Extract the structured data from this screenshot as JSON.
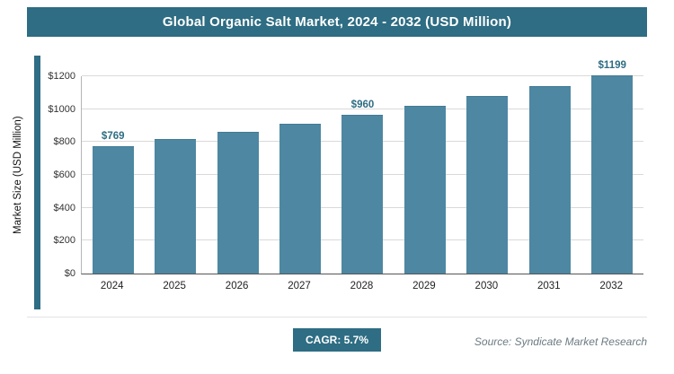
{
  "header": {
    "title": "Global Organic Salt Market, 2024 - 2032 (USD Million)"
  },
  "footer": {
    "cagr_label": "CAGR: 5.7%",
    "source": "Source: Syndicate Market Research"
  },
  "colors": {
    "accent": "#2e6d83",
    "bar": "#4d87a2",
    "gridline": "#d9d9d9"
  },
  "chart_data": {
    "type": "bar",
    "title": "Global Organic Salt Market, 2024 - 2032 (USD Million)",
    "xlabel": "",
    "ylabel": "Market Size (USD Million)",
    "categories": [
      "2024",
      "2025",
      "2026",
      "2027",
      "2028",
      "2029",
      "2030",
      "2031",
      "2032"
    ],
    "values": [
      769,
      813,
      859,
      908,
      960,
      1015,
      1073,
      1134,
      1199
    ],
    "bar_labels": [
      "$769",
      "",
      "",
      "",
      "$960",
      "",
      "",
      "",
      "$1199"
    ],
    "yticks": [
      0,
      200,
      400,
      600,
      800,
      1000,
      1200
    ],
    "ytick_labels": [
      "$0",
      "$200",
      "$400",
      "$600",
      "$800",
      "$1000",
      "$1200"
    ],
    "ylim": [
      0,
      1200
    ],
    "grid": true,
    "legend": "none",
    "annotations": [
      "CAGR: 5.7%"
    ]
  }
}
